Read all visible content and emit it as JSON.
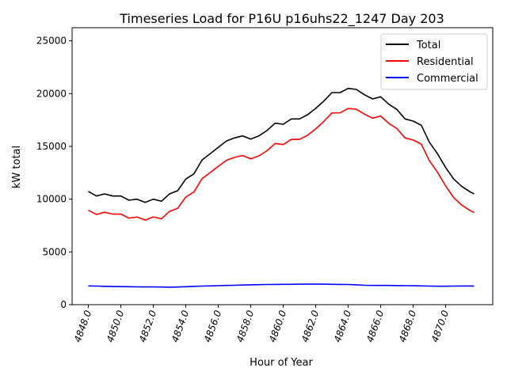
{
  "chart_data": {
    "type": "line",
    "title": "Timeseries Load for P16U p16uhs22_1247  Day 203",
    "xlabel": "Hour of Year",
    "ylabel": "kW total",
    "xlim": [
      4847,
      4872.9
    ],
    "ylim": [
      0,
      26250
    ],
    "xticks": [
      4848,
      4850,
      4852,
      4854,
      4856,
      4858,
      4860,
      4862,
      4864,
      4866,
      4868,
      4870
    ],
    "xtick_labels": [
      "4848.0",
      "4850.0",
      "4852.0",
      "4854.0",
      "4856.0",
      "4858.0",
      "4860.0",
      "4862.0",
      "4864.0",
      "4866.0",
      "4868.0",
      "4870.0"
    ],
    "yticks": [
      0,
      5000,
      10000,
      15000,
      20000,
      25000
    ],
    "ytick_labels": [
      "0",
      "5000",
      "10000",
      "15000",
      "20000",
      "25000"
    ],
    "legend_position": "top-right",
    "grid": false,
    "x": [
      4848,
      4848.5,
      4849,
      4849.5,
      4850,
      4850.5,
      4851,
      4851.5,
      4852,
      4852.5,
      4853,
      4853.5,
      4854,
      4854.5,
      4855,
      4855.5,
      4856,
      4856.5,
      4857,
      4857.5,
      4858,
      4858.5,
      4859,
      4859.5,
      4860,
      4860.5,
      4861,
      4861.5,
      4862,
      4862.5,
      4863,
      4863.5,
      4864,
      4864.5,
      4865,
      4865.5,
      4866,
      4866.5,
      4867,
      4867.5,
      4868,
      4868.5,
      4869,
      4869.5,
      4870,
      4870.5,
      4871,
      4871.5,
      4871.75
    ],
    "series": [
      {
        "name": "Total",
        "color": "#000000",
        "values": [
          10730,
          10300,
          10500,
          10300,
          10300,
          9900,
          10000,
          9700,
          10000,
          9800,
          10500,
          10800,
          11900,
          12400,
          13700,
          14300,
          14900,
          15500,
          15800,
          16000,
          15700,
          16000,
          16500,
          17200,
          17100,
          17600,
          17600,
          18000,
          18600,
          19300,
          20100,
          20100,
          20500,
          20400,
          19900,
          19500,
          19700,
          19000,
          18500,
          17600,
          17400,
          17000,
          15400,
          14300,
          13000,
          11900,
          11200,
          10700,
          10500
        ]
      },
      {
        "name": "Residential",
        "color": "#ff0000",
        "values": [
          8950,
          8540,
          8760,
          8580,
          8590,
          8200,
          8310,
          8020,
          8320,
          8130,
          8840,
          9130,
          10200,
          10670,
          11940,
          12520,
          13100,
          13680,
          13960,
          14140,
          13820,
          14100,
          14590,
          15280,
          15170,
          15670,
          15660,
          16060,
          16660,
          17360,
          18170,
          18180,
          18590,
          18520,
          18060,
          17680,
          17880,
          17180,
          16690,
          15800,
          15610,
          15220,
          13640,
          12550,
          11250,
          10140,
          9430,
          8930,
          8730
        ]
      },
      {
        "name": "Commercial",
        "color": "#0000ff",
        "values": [
          1780,
          1760,
          1740,
          1720,
          1710,
          1700,
          1690,
          1680,
          1680,
          1670,
          1660,
          1670,
          1700,
          1730,
          1760,
          1780,
          1800,
          1820,
          1840,
          1860,
          1880,
          1900,
          1910,
          1920,
          1930,
          1930,
          1940,
          1940,
          1940,
          1940,
          1930,
          1920,
          1910,
          1880,
          1840,
          1820,
          1820,
          1820,
          1810,
          1800,
          1790,
          1780,
          1760,
          1750,
          1750,
          1760,
          1770,
          1770,
          1770
        ]
      }
    ]
  }
}
